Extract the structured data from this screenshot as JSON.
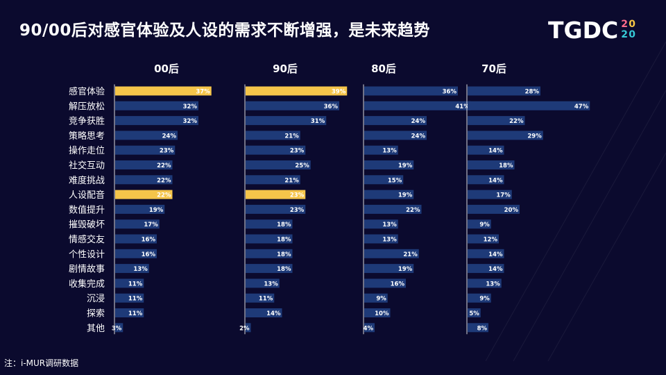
{
  "title": "90/00后对感官体验及人设的需求不断增强，是未来趋势",
  "logo": {
    "text": "TGDC",
    "year_digits": [
      "2",
      "0",
      "2",
      "0"
    ]
  },
  "note": "注：i-MUR调研数据",
  "colors": {
    "background": "#0b0a2e",
    "bar": "#1e3a78",
    "highlight": "#f5c54a",
    "text": "#ffffff"
  },
  "chart_data": {
    "type": "bar",
    "orientation": "horizontal",
    "categories": [
      "感官体验",
      "解压放松",
      "竞争获胜",
      "策略思考",
      "操作走位",
      "社交互动",
      "难度挑战",
      "人设配音",
      "数值提升",
      "摧毁破坏",
      "情感交友",
      "个性设计",
      "剧情故事",
      "收集完成",
      "沉浸",
      "探索",
      "其他"
    ],
    "series": [
      {
        "name": "00后",
        "values": [
          37,
          32,
          32,
          24,
          23,
          22,
          22,
          22,
          19,
          17,
          16,
          16,
          13,
          11,
          11,
          11,
          3
        ],
        "labels": [
          "37%",
          "32%",
          "32%",
          "24%",
          "23%",
          "22%",
          "22%",
          "22%",
          "19%",
          "17%",
          "16%",
          "16%",
          "13%",
          "11%",
          "11%",
          "11%",
          "3%"
        ],
        "highlight": [
          0,
          7
        ]
      },
      {
        "name": "90后",
        "values": [
          39,
          36,
          31,
          21,
          23,
          25,
          21,
          23,
          23,
          18,
          18,
          18,
          18,
          13,
          11,
          14,
          2
        ],
        "labels": [
          "39%",
          "36%",
          "31%",
          "21%",
          "23%",
          "25%",
          "21%",
          "23%",
          "23%",
          "18%",
          "18%",
          "18%",
          "18%",
          "13%",
          "11%",
          "14%",
          "2%"
        ],
        "highlight": [
          0,
          7
        ]
      },
      {
        "name": "80后",
        "values": [
          36,
          41,
          24,
          24,
          13,
          19,
          15,
          19,
          22,
          13,
          13,
          21,
          19,
          16,
          9,
          10,
          4
        ],
        "labels": [
          "36%",
          "41%",
          "24%",
          "24%",
          "13%",
          "19%",
          "15%",
          "19%",
          "22%",
          "13%",
          "13%",
          "21%",
          "19%",
          "16%",
          "9%",
          "10%",
          "4%"
        ],
        "highlight": []
      },
      {
        "name": "70后",
        "values": [
          28,
          47,
          22,
          29,
          14,
          18,
          14,
          17,
          20,
          9,
          12,
          14,
          14,
          13,
          9,
          5,
          8
        ],
        "labels": [
          "28%",
          "47%",
          "22%",
          "29%",
          "14%",
          "18%",
          "14%",
          "17%",
          "20%",
          "9%",
          "12%",
          "14%",
          "14%",
          "13%",
          "9%",
          "5%",
          "8%"
        ],
        "highlight": []
      }
    ]
  }
}
